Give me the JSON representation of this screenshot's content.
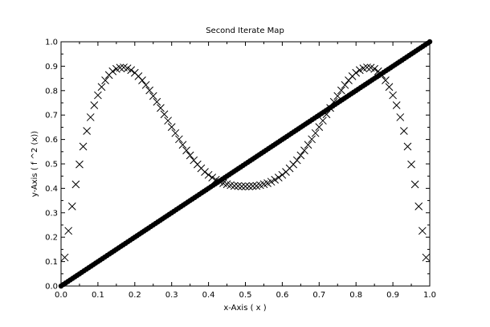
{
  "chart_data": {
    "type": "scatter",
    "title": "Second Iterate Map",
    "xlabel": "x-Axis ( x )",
    "ylabel": "y-Axis ( f ^2 (x))",
    "xlim": [
      0,
      1
    ],
    "ylim": [
      0,
      1
    ],
    "xticks": [
      "0.0",
      "0.1",
      "0.2",
      "0.3",
      "0.4",
      "0.5",
      "0.6",
      "0.7",
      "0.8",
      "0.9",
      "1.0"
    ],
    "yticks": [
      "0.0",
      "0.1",
      "0.2",
      "0.3",
      "0.4",
      "0.5",
      "0.6",
      "0.7",
      "0.8",
      "0.9",
      "1.0"
    ],
    "grid": false,
    "series": [
      {
        "marker": "x",
        "x": [
          0.01,
          0.02,
          0.03,
          0.04,
          0.05,
          0.06,
          0.07,
          0.08,
          0.09,
          0.1,
          0.11,
          0.12,
          0.13,
          0.14,
          0.15,
          0.16,
          0.17,
          0.18,
          0.19,
          0.2,
          0.21,
          0.22,
          0.23,
          0.24,
          0.25,
          0.26,
          0.27,
          0.28,
          0.29,
          0.3,
          0.31,
          0.32,
          0.33,
          0.34,
          0.35,
          0.36,
          0.37,
          0.38,
          0.39,
          0.4,
          0.41,
          0.42,
          0.43,
          0.44,
          0.45,
          0.46,
          0.47,
          0.48,
          0.49,
          0.5,
          0.51,
          0.52,
          0.53,
          0.54,
          0.55,
          0.56,
          0.57,
          0.58,
          0.59,
          0.6,
          0.61,
          0.62,
          0.63,
          0.64,
          0.65,
          0.66,
          0.67,
          0.68,
          0.69,
          0.7,
          0.71,
          0.72,
          0.73,
          0.74,
          0.75,
          0.76,
          0.77,
          0.78,
          0.79,
          0.8,
          0.81,
          0.82,
          0.83,
          0.84,
          0.85,
          0.86,
          0.87,
          0.88,
          0.89,
          0.9,
          0.91,
          0.92,
          0.93,
          0.94,
          0.95,
          0.96,
          0.97,
          0.98,
          0.99
        ],
        "y": [
          0.117,
          0.226,
          0.326,
          0.416,
          0.498,
          0.571,
          0.635,
          0.691,
          0.74,
          0.781,
          0.815,
          0.842,
          0.864,
          0.879,
          0.889,
          0.894,
          0.895,
          0.891,
          0.884,
          0.873,
          0.859,
          0.842,
          0.823,
          0.801,
          0.778,
          0.754,
          0.729,
          0.703,
          0.677,
          0.651,
          0.626,
          0.601,
          0.578,
          0.555,
          0.535,
          0.515,
          0.498,
          0.482,
          0.467,
          0.455,
          0.444,
          0.435,
          0.427,
          0.421,
          0.417,
          0.413,
          0.41,
          0.409,
          0.408,
          0.408,
          0.408,
          0.409,
          0.41,
          0.413,
          0.417,
          0.421,
          0.427,
          0.435,
          0.444,
          0.455,
          0.467,
          0.482,
          0.498,
          0.515,
          0.535,
          0.555,
          0.578,
          0.601,
          0.626,
          0.651,
          0.677,
          0.703,
          0.729,
          0.754,
          0.778,
          0.801,
          0.823,
          0.842,
          0.859,
          0.873,
          0.884,
          0.891,
          0.895,
          0.894,
          0.889,
          0.879,
          0.864,
          0.842,
          0.815,
          0.781,
          0.74,
          0.691,
          0.635,
          0.571,
          0.498,
          0.416,
          0.326,
          0.226,
          0.117
        ]
      },
      {
        "marker": "dot",
        "line": "y = x",
        "x": [
          0,
          1
        ],
        "y": [
          0,
          1
        ]
      }
    ]
  }
}
